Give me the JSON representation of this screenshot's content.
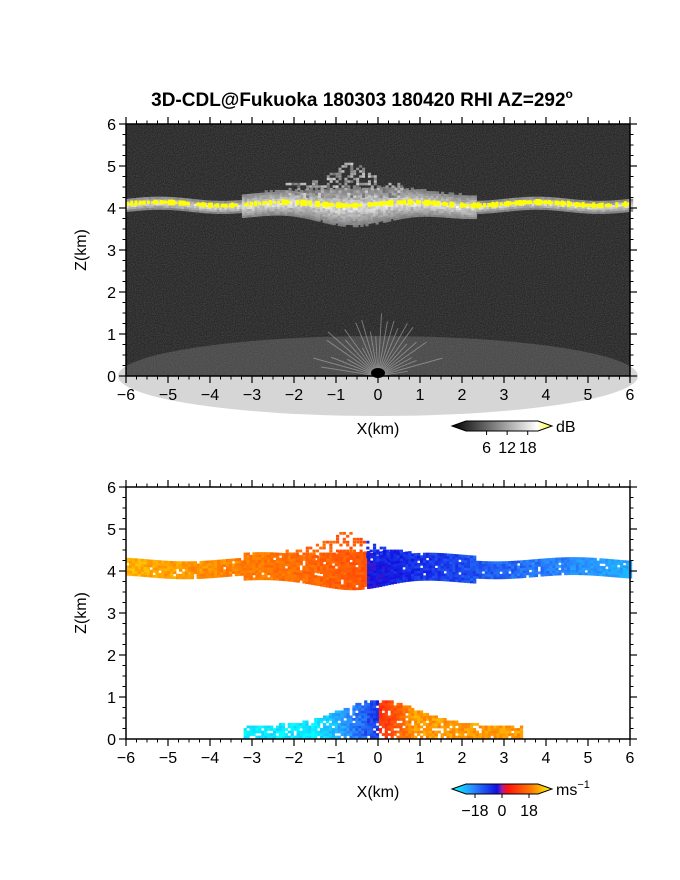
{
  "title": "3D-CDL@Fukuoka 180303 180420 RHI AZ=292",
  "title_degree": "o",
  "chart_data": [
    {
      "type": "heatmap",
      "panel": "reflectivity",
      "xlabel": "X(km)",
      "ylabel": "Z(km)",
      "xlim": [
        -6,
        6
      ],
      "ylim": [
        0,
        6
      ],
      "xticks": [
        "−6",
        "−5",
        "−4",
        "−3",
        "−2",
        "−1",
        "0",
        "1",
        "2",
        "3",
        "4",
        "5",
        "6"
      ],
      "yticks": [
        "0",
        "1",
        "2",
        "3",
        "4",
        "5",
        "6"
      ],
      "colorbar": {
        "unit": "dB",
        "ticks": [
          "6",
          "12",
          "18"
        ],
        "tick_values": [
          6,
          12,
          18
        ],
        "range": [
          0,
          21
        ]
      },
      "layer": {
        "x_range": [
          -6,
          6
        ],
        "z_center_km": 4.1,
        "saturated_color": "#ffff00"
      },
      "background_color": "#1a1a1a"
    },
    {
      "type": "heatmap",
      "panel": "doppler velocity",
      "xlabel": "X(km)",
      "ylabel": "Z(km)",
      "xlim": [
        -6,
        6
      ],
      "ylim": [
        0,
        6
      ],
      "xticks": [
        "−6",
        "−5",
        "−4",
        "−3",
        "−2",
        "−1",
        "0",
        "1",
        "2",
        "3",
        "4",
        "5",
        "6"
      ],
      "yticks": [
        "0",
        "1",
        "2",
        "3",
        "4",
        "5",
        "6"
      ],
      "colorbar": {
        "unit_base": "ms",
        "unit_exp": "−1",
        "ticks": [
          "−18",
          "0",
          "18"
        ],
        "tick_values": [
          -18,
          0,
          18
        ],
        "range": [
          -24,
          24
        ]
      },
      "upper_layer": {
        "x_range": [
          -6,
          6
        ],
        "z_center_km": 4.1,
        "velocity_left_ms": 18,
        "velocity_right_ms": -14
      },
      "lower_layer": {
        "x_range": [
          -3.2,
          3.4
        ],
        "z_top_km": 1.0,
        "velocity_left_ms": -22,
        "velocity_right_ms": 16
      }
    }
  ]
}
